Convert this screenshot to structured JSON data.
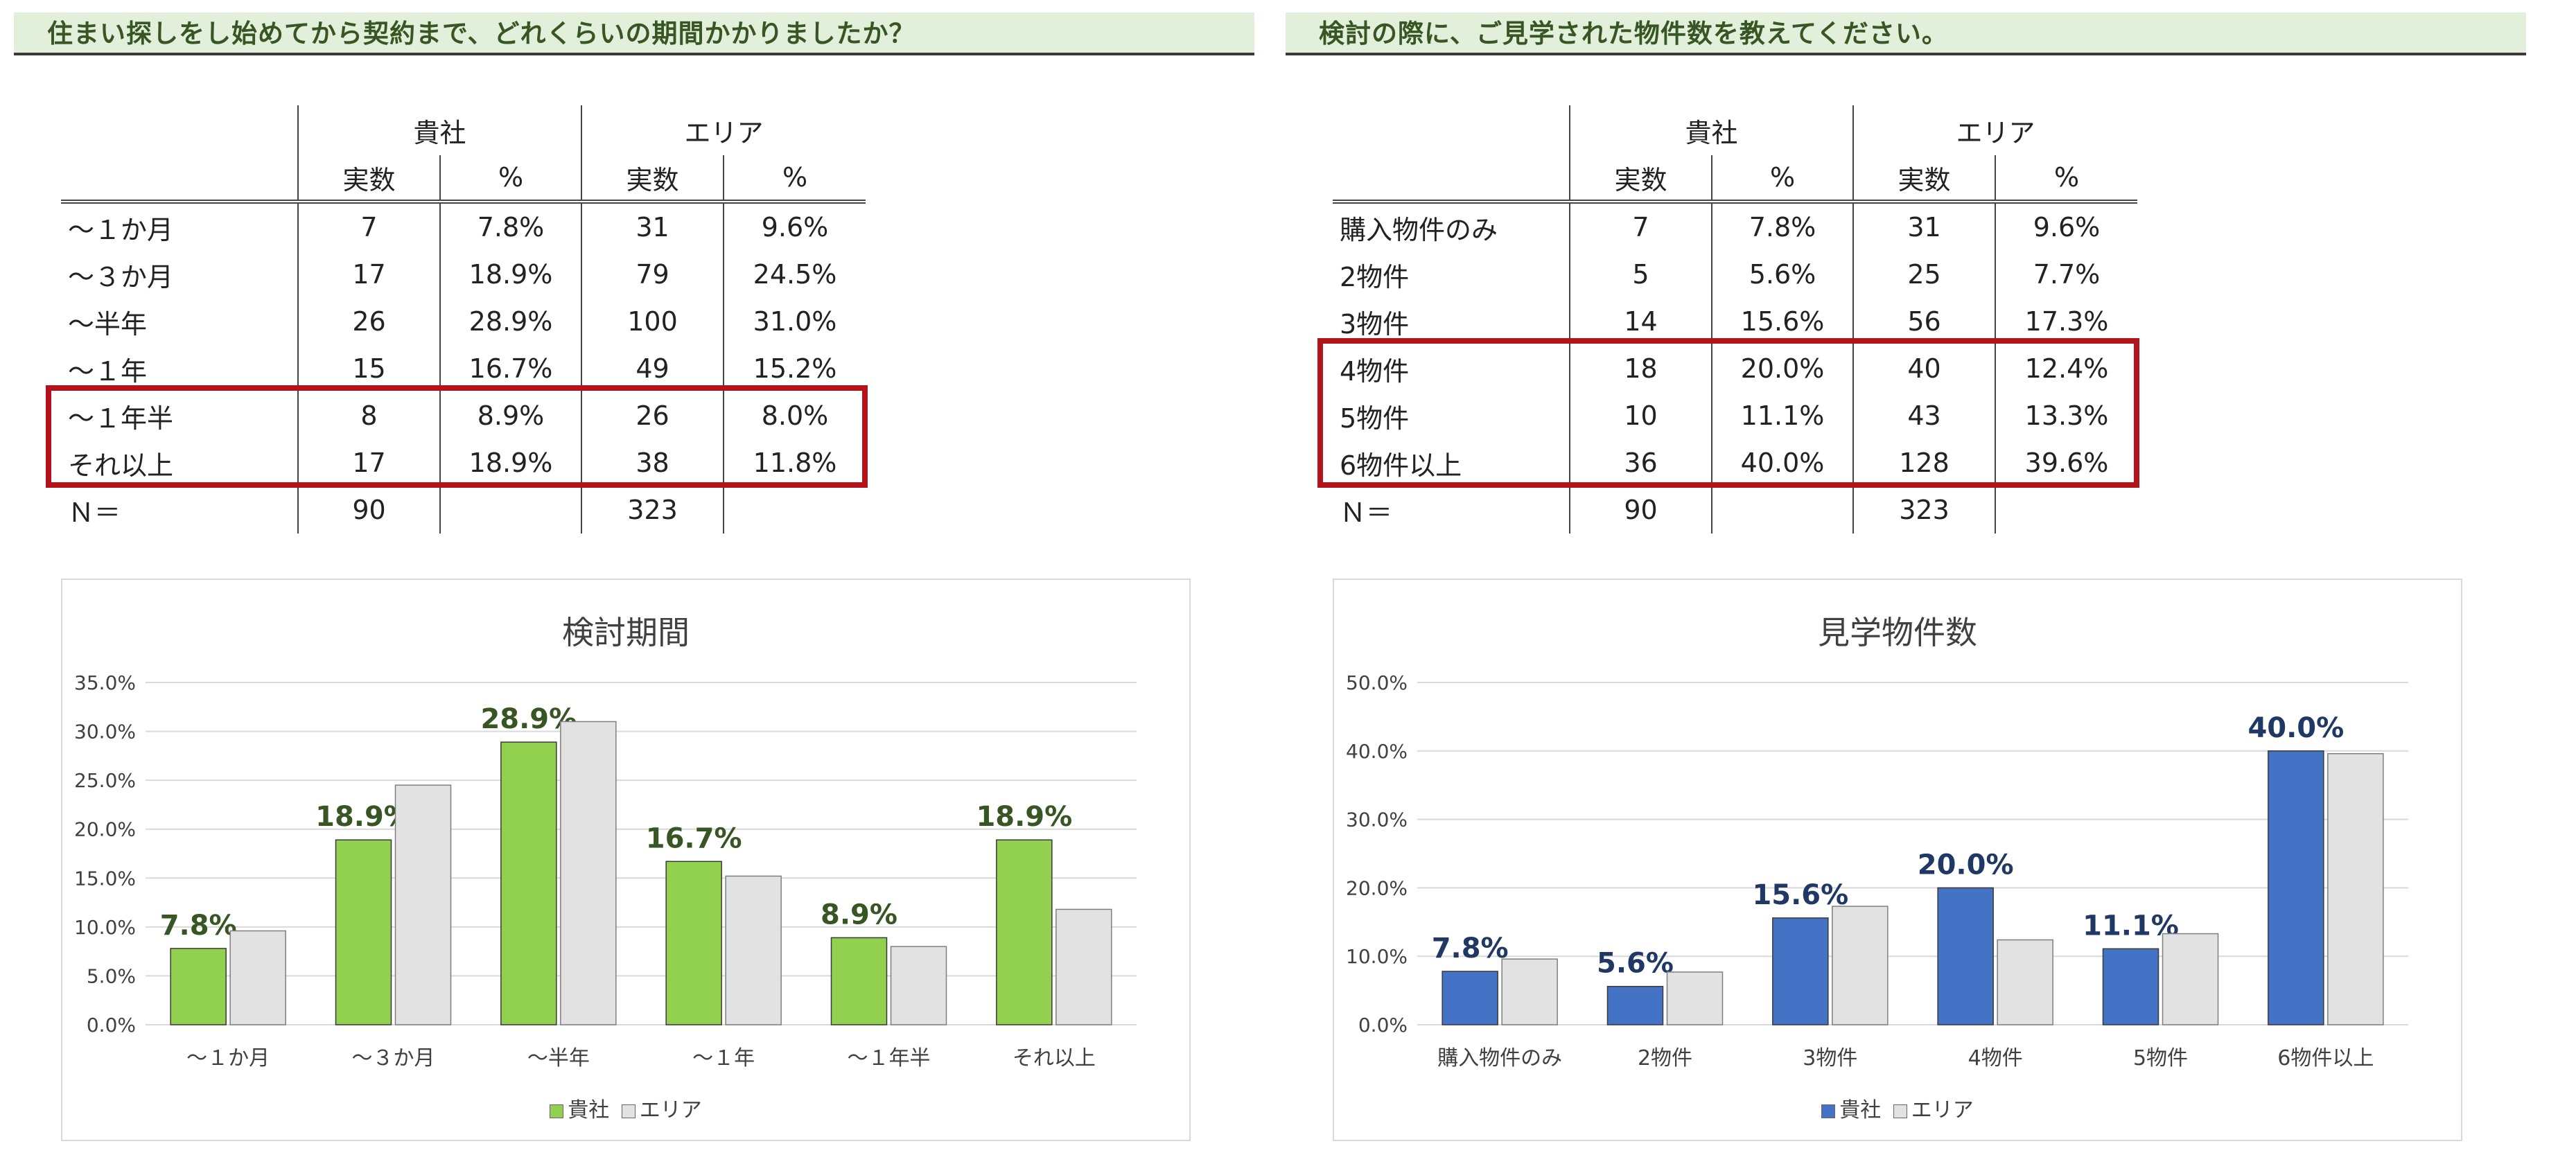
{
  "left": {
    "question": "住まい探しをし始めてから契約まで、どれくらいの期間かかりましたか？",
    "table": {
      "group_labels": [
        "貴社",
        "エリア"
      ],
      "sub_labels": [
        "実数",
        "%",
        "実数",
        "%"
      ],
      "rows": [
        [
          "～１か月",
          "7",
          "7.8%",
          "31",
          "9.6%"
        ],
        [
          "～３か月",
          "17",
          "18.9%",
          "79",
          "24.5%"
        ],
        [
          "～半年",
          "26",
          "28.9%",
          "100",
          "31.0%"
        ],
        [
          "～１年",
          "15",
          "16.7%",
          "49",
          "15.2%"
        ],
        [
          "～１年半",
          "8",
          "8.9%",
          "26",
          "8.0%"
        ],
        [
          "それ以上",
          "17",
          "18.9%",
          "38",
          "11.8%"
        ]
      ],
      "total": [
        "Ｎ＝",
        "90",
        "",
        "323",
        ""
      ]
    }
  },
  "right": {
    "question": "検討の際に、ご見学された物件数を教えてください。",
    "table": {
      "group_labels": [
        "貴社",
        "エリア"
      ],
      "sub_labels": [
        "実数",
        "%",
        "実数",
        "%"
      ],
      "rows": [
        [
          "購入物件のみ",
          "7",
          "7.8%",
          "31",
          "9.6%"
        ],
        [
          "2物件",
          "5",
          "5.6%",
          "25",
          "7.7%"
        ],
        [
          "3物件",
          "14",
          "15.6%",
          "56",
          "17.3%"
        ],
        [
          "4物件",
          "18",
          "20.0%",
          "40",
          "12.4%"
        ],
        [
          "5物件",
          "10",
          "11.1%",
          "43",
          "13.3%"
        ],
        [
          "6物件以上",
          "36",
          "40.0%",
          "128",
          "39.6%"
        ]
      ],
      "total": [
        "Ｎ＝",
        "90",
        "",
        "323",
        ""
      ]
    }
  },
  "chart_data": [
    {
      "type": "bar",
      "title": "検討期間",
      "categories": [
        "～１か月",
        "～３か月",
        "～半年",
        "～１年",
        "～１年半",
        "それ以上"
      ],
      "series": [
        {
          "name": "貴社",
          "values": [
            7.8,
            18.9,
            28.9,
            16.7,
            8.9,
            18.9
          ],
          "color": "#92d050",
          "labeled": true
        },
        {
          "name": "エリア",
          "values": [
            9.6,
            24.5,
            31.0,
            15.2,
            8.0,
            11.8
          ],
          "color": "#e2e2e2",
          "labeled": false
        }
      ],
      "label_color": "#375623",
      "ylim": [
        0,
        35
      ],
      "yticks": [
        "0.0%",
        "5.0%",
        "10.0%",
        "15.0%",
        "20.0%",
        "25.0%",
        "30.0%",
        "35.0%"
      ],
      "grid": true,
      "legend": "bottom"
    },
    {
      "type": "bar",
      "title": "見学物件数",
      "categories": [
        "購入物件のみ",
        "2物件",
        "3物件",
        "4物件",
        "5物件",
        "6物件以上"
      ],
      "series": [
        {
          "name": "貴社",
          "values": [
            7.8,
            5.6,
            15.6,
            20.0,
            11.1,
            40.0
          ],
          "color": "#4472c4",
          "labeled": true
        },
        {
          "name": "エリア",
          "values": [
            9.6,
            7.7,
            17.3,
            12.4,
            13.3,
            39.6
          ],
          "color": "#e2e2e2",
          "labeled": false
        }
      ],
      "label_color": "#1f3864",
      "ylim": [
        0,
        50
      ],
      "yticks": [
        "0.0%",
        "10.0%",
        "20.0%",
        "30.0%",
        "40.0%",
        "50.0%"
      ],
      "grid": true,
      "legend": "bottom"
    }
  ]
}
